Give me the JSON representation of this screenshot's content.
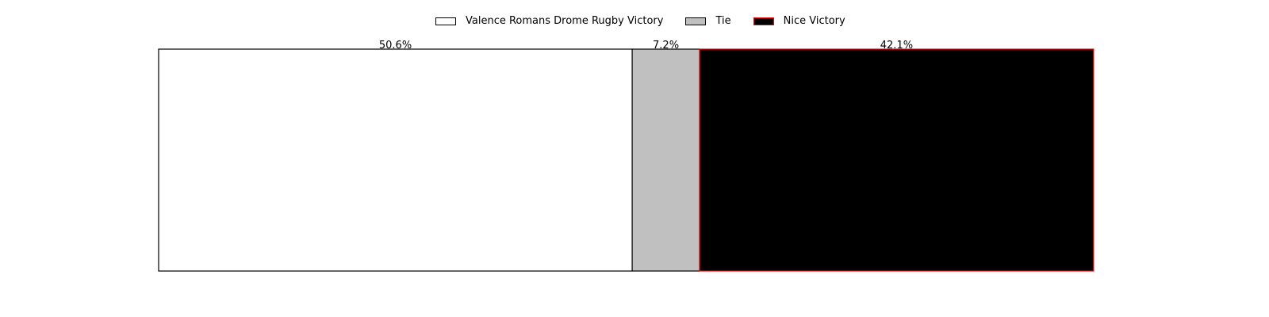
{
  "chart_data": {
    "type": "bar",
    "orientation": "horizontal-stacked",
    "title": "",
    "xlabel": "",
    "ylabel": "",
    "grid": false,
    "axes_visible": false,
    "legend_position": "top-center",
    "xlim": [
      0,
      100
    ],
    "series": [
      {
        "name": "Valence Romans Drome Rugby Victory",
        "value": 50.6,
        "label": "50.6%",
        "fill": "#ffffff",
        "edge": "#000000"
      },
      {
        "name": "Tie",
        "value": 7.2,
        "label": "7.2%",
        "fill": "#c0c0c0",
        "edge": "#000000"
      },
      {
        "name": "Nice Victory",
        "value": 42.1,
        "label": "42.1%",
        "fill": "#000000",
        "edge": "#ff0000"
      }
    ]
  }
}
